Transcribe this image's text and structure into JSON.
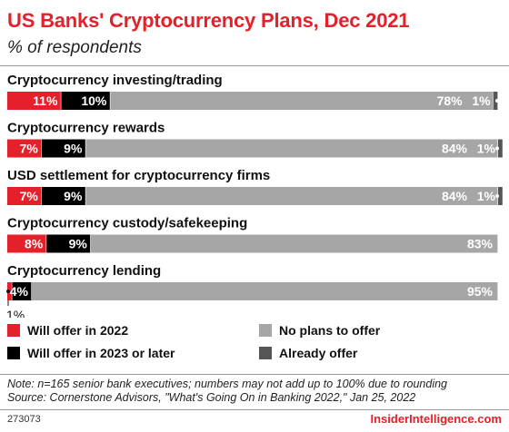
{
  "header": {
    "title": "US Banks' Cryptocurrency Plans, Dec 2021",
    "subtitle": "% of respondents"
  },
  "chart_data": {
    "type": "bar",
    "orientation": "horizontal",
    "stacked": true,
    "categories": [
      "Cryptocurrency investing/trading",
      "Cryptocurrency rewards",
      "USD settlement for cryptocurrency firms",
      "Cryptocurrency custody/safekeeping",
      "Cryptocurrency lending"
    ],
    "series": [
      {
        "name": "Will offer in 2022",
        "color": "#e4212b",
        "values": [
          11,
          7,
          7,
          8,
          1
        ]
      },
      {
        "name": "Will offer in 2023 or later",
        "color": "#000000",
        "values": [
          10,
          9,
          9,
          9,
          4
        ]
      },
      {
        "name": "No plans to offer",
        "color": "#a6a6a6",
        "values": [
          78,
          84,
          84,
          83,
          95
        ]
      },
      {
        "name": "Already offer",
        "color": "#555555",
        "values": [
          1,
          1,
          1,
          0,
          0
        ]
      }
    ],
    "value_labels": [
      [
        "11%",
        "10%",
        "78%",
        "1%"
      ],
      [
        "7%",
        "9%",
        "84%",
        "1%"
      ],
      [
        "7%",
        "9%",
        "84%",
        "1%"
      ],
      [
        "8%",
        "9%",
        "83%",
        ""
      ],
      [
        "1%",
        "4%",
        "95%",
        ""
      ]
    ],
    "xlim": [
      0,
      100
    ],
    "legend_position": "bottom"
  },
  "legend": {
    "items": [
      {
        "label": "Will offer in 2022",
        "color": "#e4212b"
      },
      {
        "label": "No plans to offer",
        "color": "#a6a6a6"
      },
      {
        "label": "Will offer in 2023 or later",
        "color": "#000000"
      },
      {
        "label": "Already offer",
        "color": "#555555"
      }
    ]
  },
  "footer": {
    "note": "Note: n=165 senior bank executives; numbers may not add up to 100% due to rounding",
    "source": "Source: Cornerstone Advisors, \"What's Going On in Banking 2022,\" Jan 25, 2022",
    "chart_id": "273073",
    "brand": "InsiderIntelligence.com"
  }
}
